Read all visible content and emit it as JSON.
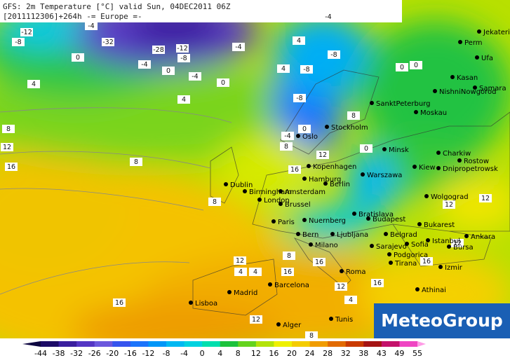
{
  "header": {
    "title": "GFS: 2m Temperature [°C] valid Sun, 04DEC2011 06Z",
    "subtitle": "[2011112306]+264h -= Europe =-"
  },
  "logo": "MeteoGroup",
  "cities": [
    "Jekaterinburg",
    "Perm",
    "Ufa",
    "Kasan",
    "Samara",
    "NishniNowgorod",
    "SanktPeterburg",
    "Moskau",
    "Stockholm",
    "Oslo",
    "Minsk",
    "Charkiw",
    "Rostow",
    "Kopenhagen",
    "Kiew",
    "Dnipropetrowsk",
    "Warszawa",
    "Hamburg",
    "Berlin",
    "Dublin",
    "Birmingham",
    "Amsterdam",
    "London",
    "Brussel",
    "Wolgograd",
    "Paris",
    "Bratislava",
    "Nuernberg",
    "Budapest",
    "Bukarest",
    "Ankara",
    "Bern",
    "Ljubljana",
    "Belgrad",
    "Istanbul",
    "Milano",
    "Sarajevo",
    "Sofia",
    "Bursa",
    "Podgorica",
    "Tirana",
    "Izmir",
    "Roma",
    "Barcelona",
    "Madrid",
    "Athinai",
    "Lisboa",
    "Tunis",
    "Alger"
  ],
  "contour_labels": [
    -12,
    -8,
    -4,
    -32,
    -28,
    -12,
    -8,
    -4,
    0,
    0,
    4,
    -4,
    0,
    4,
    8,
    12,
    16,
    8,
    -8,
    -4,
    -8,
    -4,
    -8,
    4,
    0,
    4,
    0,
    8,
    12,
    16,
    12,
    8,
    4,
    4,
    16,
    12,
    16,
    12,
    16,
    16,
    8,
    12,
    0,
    -4,
    0,
    8,
    12,
    12,
    16,
    4,
    8
  ],
  "colorbar": {
    "ticks": [
      -44,
      -38,
      -32,
      -26,
      -20,
      -16,
      -12,
      -8,
      -4,
      0,
      4,
      8,
      12,
      16,
      20,
      24,
      28,
      32,
      38,
      43,
      49,
      55
    ],
    "colors": [
      "#1c0b66",
      "#3a1f9e",
      "#5436c4",
      "#6b58dd",
      "#3654ee",
      "#1c74fb",
      "#0096f8",
      "#00b8f2",
      "#00d2e0",
      "#00dfae",
      "#1cc23c",
      "#64d31e",
      "#b3e30a",
      "#eef000",
      "#f4cc00",
      "#f09c00",
      "#e26a00",
      "#c93a00",
      "#a51414",
      "#c4126a",
      "#ef45c3"
    ],
    "under": "#0d0640",
    "over": "#ff9be6"
  }
}
